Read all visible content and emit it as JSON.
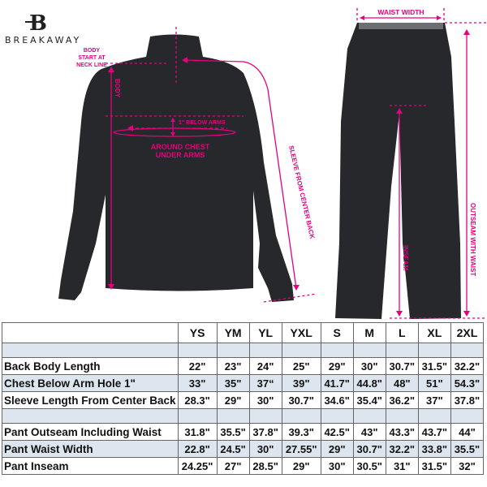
{
  "brand": {
    "name": "BREAKAWAY",
    "logo_letter": "B"
  },
  "colors": {
    "accent": "#e6007e",
    "garment": "#26282c",
    "table_shade": "#dde6ee"
  },
  "annotations": {
    "body_start": [
      "BODY",
      "START AT",
      "NECK LINE"
    ],
    "body": "BODY",
    "below_arms": "1\" BELOW ARMS",
    "chest": [
      "AROUND CHEST",
      "UNDER ARMS"
    ],
    "sleeve": "SLEEVE FROM CENTER BACK",
    "waist_width": "WAIST WIDTH",
    "inseam": "INSEAM",
    "outseam": "OUTSEAM WITH WAIST"
  },
  "table": {
    "sizes": [
      "YS",
      "YM",
      "YL",
      "YXL",
      "S",
      "M",
      "L",
      "XL",
      "2XL"
    ],
    "rows": [
      {
        "label": "Back Body Length",
        "values": [
          "22\"",
          "23\"",
          "24\"",
          "25\"",
          "29\"",
          "30\"",
          "30.7\"",
          "31.5\"",
          "32.2\""
        ]
      },
      {
        "label": "Chest Below Arm Hole 1\"",
        "values": [
          "33\"",
          "35\"",
          "37“",
          "39\"",
          "41.7\"",
          "44.8\"",
          "48\"",
          "51\"",
          "54.3\""
        ]
      },
      {
        "label": "Sleeve Length From Center Back",
        "values": [
          "28.3\"",
          "29\"",
          "30\"",
          "30.7\"",
          "34.6\"",
          "35.4\"",
          "36.2\"",
          "37\"",
          "37.8\""
        ]
      },
      {
        "label": "Pant Outseam Including Waist",
        "values": [
          "31.8\"",
          "35.5\"",
          "37.8\"",
          "39.3\"",
          "42.5\"",
          "43\"",
          "43.3\"",
          "43.7\"",
          "44\""
        ]
      },
      {
        "label": "Pant Waist Width",
        "values": [
          "22.8\"",
          "24.5\"",
          "30\"",
          "27.55\"",
          "29\"",
          "30.7\"",
          "32.2\"",
          "33.8\"",
          "35.5\""
        ]
      },
      {
        "label": "Pant Inseam",
        "values": [
          "24.25\"",
          "27\"",
          "28.5\"",
          "29\"",
          "30\"",
          "30.5\"",
          "31\"",
          "31.5\"",
          "32\""
        ]
      }
    ]
  }
}
